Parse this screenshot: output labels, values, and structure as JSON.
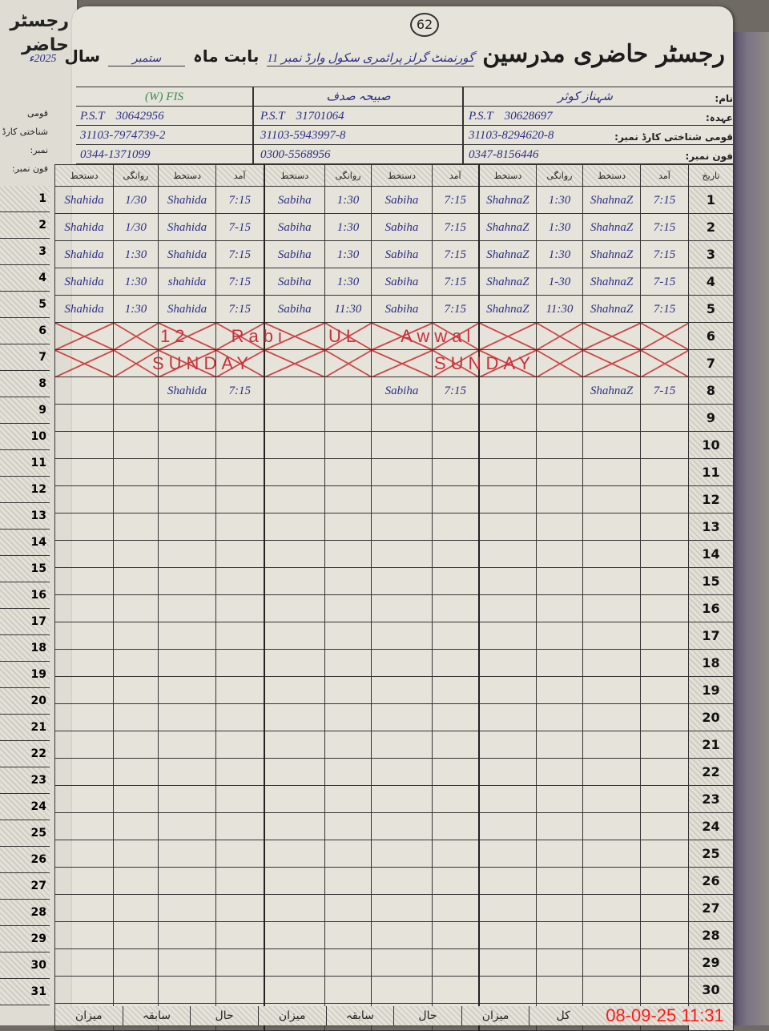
{
  "page_number": "62",
  "header": {
    "title": "رجسٹر حاضری مدرسین",
    "school": "گورنمنٹ گرلز پرائمری سکول وارڈ نمبر 11",
    "month_label": "بابت ماہ",
    "month": "ستمبر",
    "year_label": "سال",
    "year": "2025ء"
  },
  "info_labels": [
    "نام:",
    "عہدہ:",
    "قومی شناختی کارڈ نمبر:",
    "فون نمبر:"
  ],
  "teachers": [
    {
      "name": "شہناز کوثر",
      "designation": "P.S.T",
      "personal_no": "30628697",
      "cnic": "31103-8294620-8",
      "phone": "0347-8156446"
    },
    {
      "name": "صبیحہ صدف",
      "designation": "P.S.T",
      "personal_no": "31701064",
      "cnic": "31103-5943997-8",
      "phone": "0300-5568956"
    },
    {
      "name": "(W) FIS",
      "designation": "P.S.T",
      "personal_no": "30642956",
      "cnic": "31103-7974739-2",
      "phone": "0344-1371099"
    }
  ],
  "columns": {
    "date": "تاریخ",
    "arrival": "آمد",
    "signature": "دستخط",
    "departure": "روانگی"
  },
  "rows": [
    {
      "day": "1",
      "t": [
        [
          "7:15",
          "ShahnaZ",
          "1:30",
          "ShahnaZ"
        ],
        [
          "7:15",
          "Sabiha",
          "1:30",
          "Sabiha"
        ],
        [
          "7:15",
          "Shahida",
          "1/30",
          "Shahida"
        ]
      ]
    },
    {
      "day": "2",
      "t": [
        [
          "7:15",
          "ShahnaZ",
          "1:30",
          "ShahnaZ"
        ],
        [
          "7:15",
          "Sabiha",
          "1:30",
          "Sabiha"
        ],
        [
          "7-15",
          "Shahida",
          "1/30",
          "Shahida"
        ]
      ]
    },
    {
      "day": "3",
      "t": [
        [
          "7:15",
          "ShahnaZ",
          "1:30",
          "ShahnaZ"
        ],
        [
          "7:15",
          "Sabiha",
          "1:30",
          "Sabiha"
        ],
        [
          "7:15",
          "Shahida",
          "1:30",
          "Shahida"
        ]
      ]
    },
    {
      "day": "4",
      "t": [
        [
          "7-15",
          "ShahnaZ",
          "1-30",
          "ShahnaZ"
        ],
        [
          "7:15",
          "Sabiha",
          "1:30",
          "Sabiha"
        ],
        [
          "7:15",
          "shahida",
          "1:30",
          "Shahida"
        ]
      ]
    },
    {
      "day": "5",
      "t": [
        [
          "7:15",
          "ShahnaZ",
          "11:30",
          "ShahnaZ"
        ],
        [
          "7:15",
          "Sabiha",
          "11:30",
          "Sabiha"
        ],
        [
          "7:15",
          "Shahida",
          "1:30",
          "Shahida"
        ]
      ]
    },
    {
      "day": "6",
      "holiday": true
    },
    {
      "day": "7",
      "holiday": true
    },
    {
      "day": "8",
      "t": [
        [
          "7-15",
          "ShahnaZ",
          "",
          ""
        ],
        [
          "7:15",
          "Sabiha",
          "",
          ""
        ],
        [
          "7:15",
          "Shahida",
          "",
          ""
        ]
      ]
    },
    {
      "day": "9"
    },
    {
      "day": "10"
    },
    {
      "day": "11"
    },
    {
      "day": "12"
    },
    {
      "day": "13"
    },
    {
      "day": "14"
    },
    {
      "day": "15"
    },
    {
      "day": "16"
    },
    {
      "day": "17"
    },
    {
      "day": "18"
    },
    {
      "day": "19"
    },
    {
      "day": "20"
    },
    {
      "day": "21"
    },
    {
      "day": "22"
    },
    {
      "day": "23"
    },
    {
      "day": "24"
    },
    {
      "day": "25"
    },
    {
      "day": "26"
    },
    {
      "day": "27"
    },
    {
      "day": "28"
    },
    {
      "day": "29"
    },
    {
      "day": "30"
    },
    {
      "day": "31"
    }
  ],
  "notes": {
    "row6": "12 Rabi UL Awwal",
    "row7": [
      "SUNDAY",
      "SUNDAY"
    ]
  },
  "footer": [
    "کل",
    "میزان",
    "حال",
    "سابقہ",
    "میزان",
    "حال",
    "سابقہ",
    "میزان"
  ],
  "timestamp": "08-09-25 11:31",
  "colors": {
    "ink_blue": "#2b2f86",
    "ink_red": "#c8323a",
    "ink_green": "#3b8a55",
    "paper": "#e6e3da",
    "timestamp": "#ff1a1a"
  }
}
